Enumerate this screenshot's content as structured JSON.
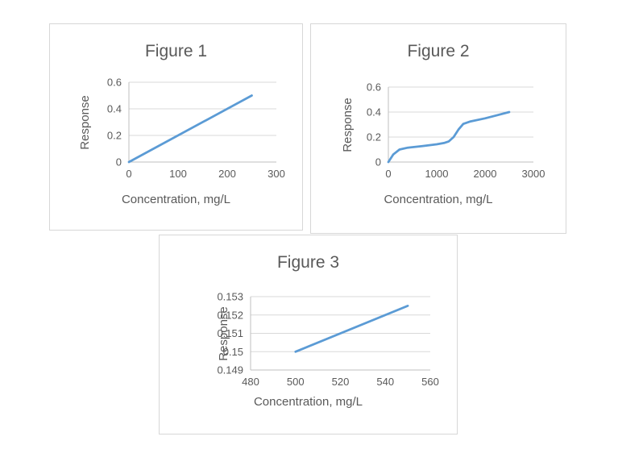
{
  "colors": {
    "line": "#5b9bd5",
    "grid": "#d9d9d9",
    "axis": "#bfbfbf",
    "text": "#595959",
    "box_border": "#d7d7d7",
    "background": "#ffffff"
  },
  "chart_data": [
    {
      "type": "line",
      "title": "Figure 1",
      "xlabel": "Concentration, mg/L",
      "ylabel": "Response",
      "xlim": [
        0,
        300
      ],
      "ylim": [
        0,
        0.6
      ],
      "xticks": [
        0,
        100,
        200,
        300
      ],
      "yticks": [
        0,
        0.2,
        0.4,
        0.6
      ],
      "grid": "horizontal",
      "legend": "none",
      "series": [
        {
          "name": "Response",
          "x": [
            0,
            250
          ],
          "y": [
            0,
            0.5
          ]
        }
      ]
    },
    {
      "type": "line",
      "title": "Figure 2",
      "xlabel": "Concentration, mg/L",
      "ylabel": "Response",
      "xlim": [
        0,
        3000
      ],
      "ylim": [
        0,
        0.6
      ],
      "xticks": [
        0,
        1000,
        2000,
        3000
      ],
      "yticks": [
        0,
        0.2,
        0.4,
        0.6
      ],
      "grid": "horizontal",
      "legend": "none",
      "series": [
        {
          "name": "Response",
          "x": [
            0,
            100,
            230,
            400,
            700,
            1000,
            1150,
            1250,
            1350,
            1450,
            1550,
            1700,
            2000,
            2250,
            2500
          ],
          "y": [
            0,
            0.06,
            0.1,
            0.115,
            0.128,
            0.142,
            0.152,
            0.165,
            0.2,
            0.26,
            0.305,
            0.325,
            0.35,
            0.375,
            0.4
          ]
        }
      ]
    },
    {
      "type": "line",
      "title": "Figure 3",
      "xlabel": "Concentration, mg/L",
      "ylabel": "Response",
      "xlim": [
        480,
        560
      ],
      "ylim": [
        0.149,
        0.153
      ],
      "xticks": [
        480,
        500,
        520,
        540,
        560
      ],
      "yticks": [
        0.149,
        0.15,
        0.151,
        0.152,
        0.153
      ],
      "grid": "horizontal",
      "legend": "none",
      "series": [
        {
          "name": "Response",
          "x": [
            500,
            550
          ],
          "y": [
            0.15,
            0.1525
          ]
        }
      ]
    }
  ]
}
